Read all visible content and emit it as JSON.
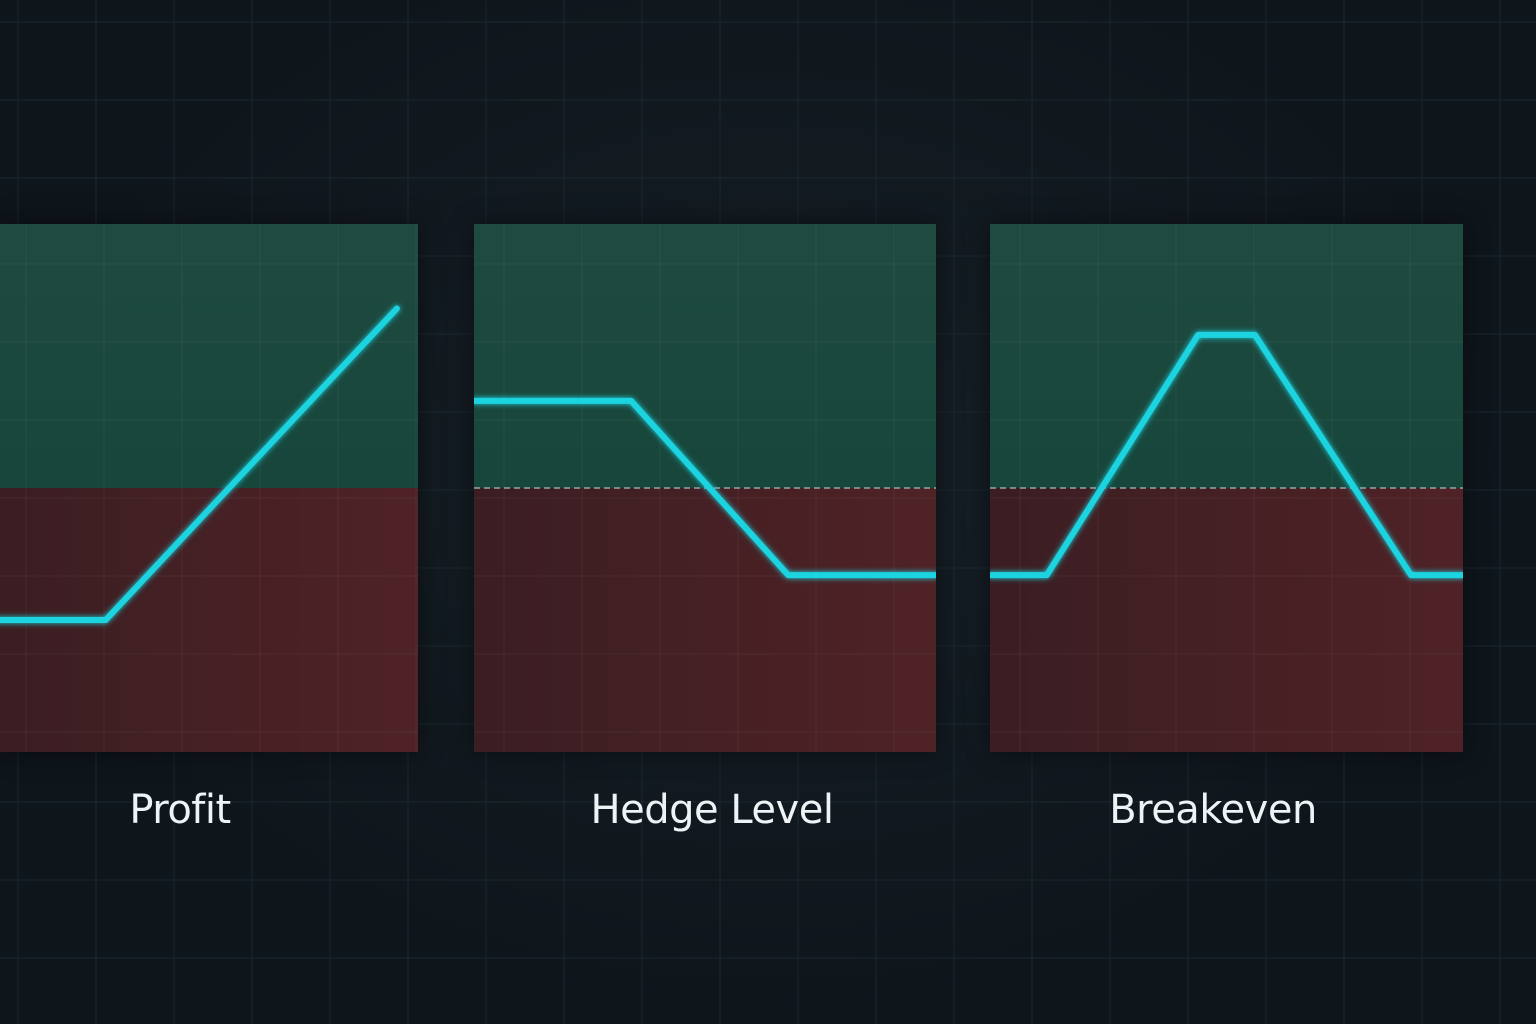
{
  "colors": {
    "background": "#0e151b",
    "grid": "#1b2730",
    "profit_zone": "#17463b",
    "loss_zone": "#4f2226",
    "payoff_line": "#1fd3e0",
    "dashed_line": "#9aa3a6",
    "text": "#eef3f5"
  },
  "chart_data": [
    {
      "type": "line",
      "caption": "Profit",
      "title": "",
      "xlabel": "",
      "ylabel": "",
      "grid": true,
      "zero_line_dashed": false,
      "xlim": [
        0,
        100
      ],
      "ylim": [
        -1,
        1
      ],
      "series": [
        {
          "x": [
            0,
            26,
            95
          ],
          "y": [
            -0.5,
            -0.5,
            0.68
          ]
        }
      ]
    },
    {
      "type": "line",
      "caption": "Hedge Level",
      "title": "",
      "xlabel": "",
      "ylabel": "",
      "grid": true,
      "zero_line_dashed": true,
      "xlim": [
        0,
        100
      ],
      "ylim": [
        -1,
        1
      ],
      "series": [
        {
          "x": [
            0,
            34,
            68,
            100
          ],
          "y": [
            0.33,
            0.33,
            -0.33,
            -0.33
          ]
        }
      ]
    },
    {
      "type": "line",
      "caption": "Breakeven",
      "title": "",
      "xlabel": "",
      "ylabel": "",
      "grid": true,
      "zero_line_dashed": true,
      "xlim": [
        0,
        100
      ],
      "ylim": [
        -1,
        1
      ],
      "series": [
        {
          "x": [
            0,
            12,
            44,
            56,
            89,
            100
          ],
          "y": [
            -0.33,
            -0.33,
            0.58,
            0.58,
            -0.33,
            -0.33
          ]
        },
        {
          "x": [
            0,
            100
          ],
          "y": [
            0,
            0
          ]
        }
      ]
    }
  ]
}
